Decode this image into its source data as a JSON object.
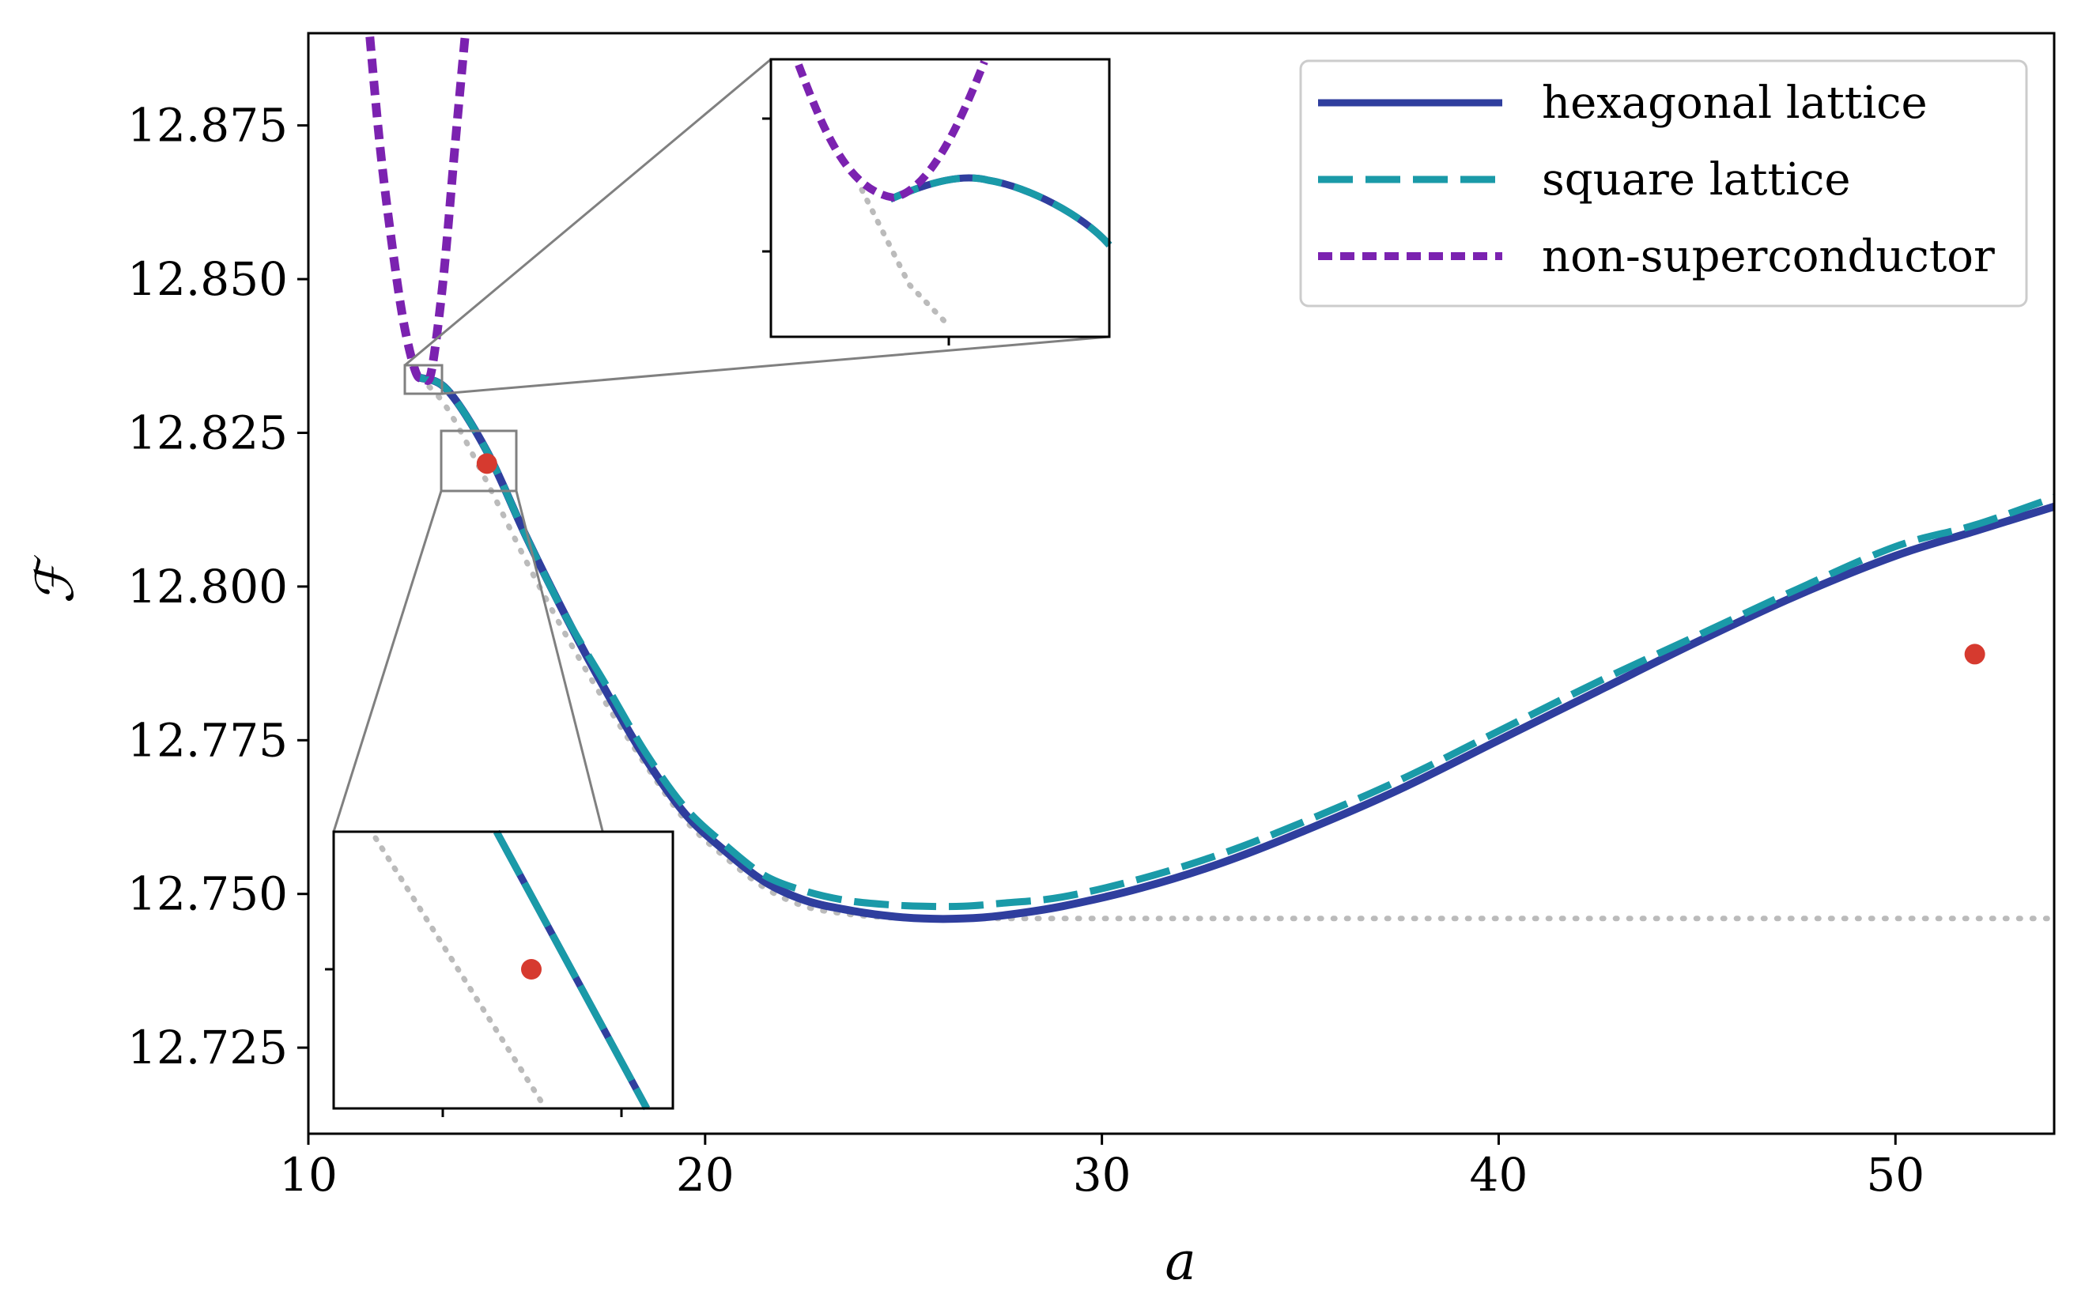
{
  "chart_data": {
    "type": "line",
    "xlabel": "a",
    "ylabel": "ℱ",
    "xlim": [
      10,
      54
    ],
    "ylim": [
      12.711,
      12.89
    ],
    "xticks": [
      10,
      20,
      30,
      40,
      50
    ],
    "xtick_labels": [
      "10",
      "20",
      "30",
      "40",
      "50"
    ],
    "yticks": [
      12.725,
      12.75,
      12.775,
      12.8,
      12.825,
      12.85,
      12.875
    ],
    "ytick_labels": [
      "12.725",
      "12.750",
      "12.775",
      "12.800",
      "12.825",
      "12.850",
      "12.875"
    ],
    "grid": false,
    "legend_position": "top-right",
    "series": [
      {
        "name": "hexagonal lattice",
        "style": "solid",
        "color": "#2F3E9E",
        "x": [
          12.8,
          13.5,
          14.5,
          15.5,
          16.5,
          17.5,
          18.5,
          19.5,
          20.5,
          21.5,
          22.5,
          23.5,
          24.5,
          25.5,
          26.5,
          27.5,
          29,
          31,
          33,
          35,
          37.5,
          40,
          42.5,
          45,
          47.5,
          50,
          52,
          54
        ],
        "y": [
          12.834,
          12.832,
          12.822,
          12.808,
          12.795,
          12.783,
          12.772,
          12.763,
          12.757,
          12.752,
          12.749,
          12.7475,
          12.7465,
          12.746,
          12.746,
          12.7465,
          12.748,
          12.751,
          12.755,
          12.76,
          12.767,
          12.775,
          12.783,
          12.791,
          12.7985,
          12.805,
          12.809,
          12.813
        ]
      },
      {
        "name": "square lattice",
        "style": "dashed",
        "color": "#1A9AA8",
        "x": [
          12.8,
          13.5,
          14.5,
          15.5,
          16.5,
          17.5,
          18.5,
          19.5,
          20.5,
          21.5,
          22.5,
          23.5,
          24.5,
          25.5,
          26.5,
          27.5,
          29,
          31,
          33,
          35,
          37.5,
          40,
          42.5,
          45,
          47.5,
          50,
          52,
          54
        ],
        "y": [
          12.834,
          12.832,
          12.822,
          12.808,
          12.795,
          12.784,
          12.773,
          12.764,
          12.758,
          12.753,
          12.7505,
          12.749,
          12.7483,
          12.748,
          12.748,
          12.7485,
          12.7495,
          12.7525,
          12.7565,
          12.7615,
          12.7685,
          12.7765,
          12.7845,
          12.792,
          12.7995,
          12.8065,
          12.81,
          12.8145
        ]
      },
      {
        "name": "non-superconductor",
        "style": "dotted",
        "color": "#7B22B0",
        "x": [
          11.5,
          11.8,
          12.1,
          12.4,
          12.7,
          12.9,
          13.1,
          13.4,
          13.7,
          14.0
        ],
        "y": [
          12.893,
          12.872,
          12.856,
          12.843,
          12.835,
          12.834,
          12.835,
          12.85,
          12.872,
          12.893
        ]
      }
    ],
    "reference_curve": {
      "color": "#BBBBBB",
      "style": "dotted",
      "x": [
        12.8,
        13.5,
        14.5,
        15.5,
        16.5,
        17.5,
        18.5,
        19.5,
        20.5,
        21.5,
        22.5,
        23.5,
        24.5,
        25.5,
        26.0,
        27.5,
        30,
        35,
        40,
        45,
        50,
        54
      ],
      "y": [
        12.834,
        12.829,
        12.817,
        12.804,
        12.792,
        12.781,
        12.771,
        12.762,
        12.756,
        12.751,
        12.748,
        12.7468,
        12.7462,
        12.746,
        12.746,
        12.746,
        12.746,
        12.746,
        12.746,
        12.746,
        12.746,
        12.746
      ]
    },
    "points": {
      "color": "#D63A2F",
      "x": [
        14.5,
        52
      ],
      "y": [
        12.82,
        12.789
      ]
    }
  }
}
